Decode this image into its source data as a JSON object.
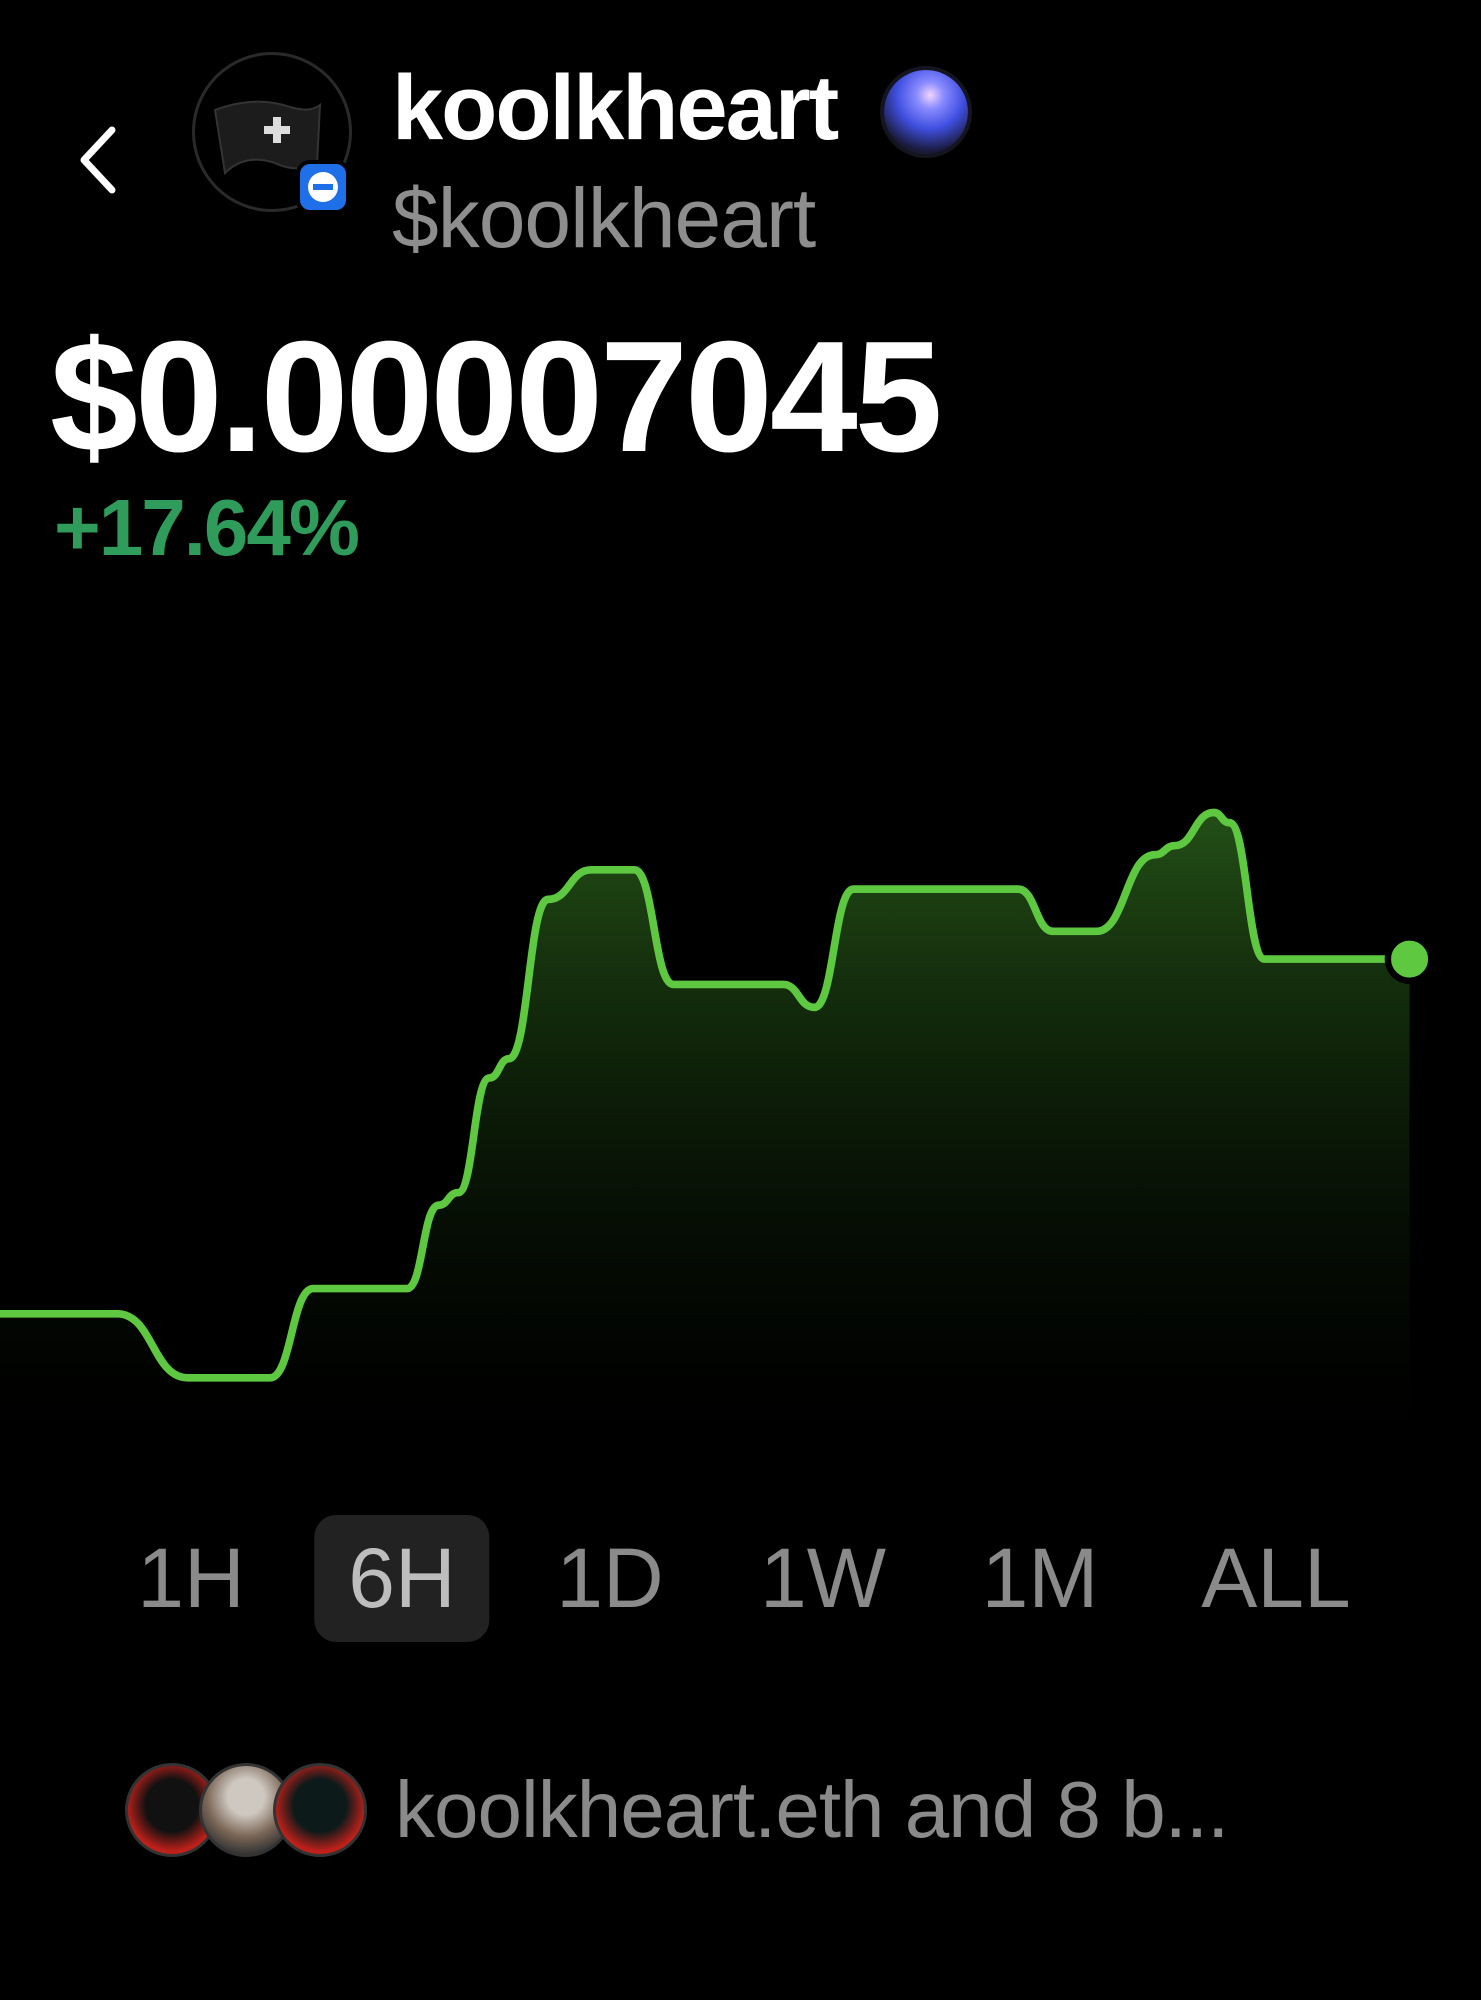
{
  "header": {
    "back_icon": "chevron-left-icon",
    "name": "koolkheart",
    "ticker": "$koolkheart",
    "verified_icon": "orb-icon",
    "avatar_badge_icon": "minus-circle-icon"
  },
  "price": {
    "value": "$0.00007045",
    "change": "+17.64%",
    "change_color": "#2f9c5c"
  },
  "time_ranges": {
    "selected": "6H",
    "options": [
      "1H",
      "6H",
      "1D",
      "1W",
      "1M",
      "ALL"
    ]
  },
  "holders": {
    "text": "koolkheart.eth and 8 b..."
  },
  "colors": {
    "line": "#5ec940",
    "background": "#000000"
  },
  "chart_data": {
    "type": "area",
    "title": "",
    "xlabel": "",
    "ylabel": "",
    "axes_visible": false,
    "grid": false,
    "points": [
      [
        0,
        16.9
      ],
      [
        30,
        16.9
      ],
      [
        48,
        6.3
      ],
      [
        69,
        6.3
      ],
      [
        80,
        21.1
      ],
      [
        104,
        21.1
      ],
      [
        112,
        34.9
      ],
      [
        117,
        37
      ],
      [
        125,
        56
      ],
      [
        130,
        59.2
      ],
      [
        140,
        85.6
      ],
      [
        151,
        90.5
      ],
      [
        162,
        90.5
      ],
      [
        172,
        71.5
      ],
      [
        200,
        71.5
      ],
      [
        208,
        67.7
      ],
      [
        218,
        87.3
      ],
      [
        260,
        87.3
      ],
      [
        269,
        80.3
      ],
      [
        280,
        80.3
      ],
      [
        295,
        93
      ],
      [
        300,
        94.5
      ],
      [
        310,
        100
      ],
      [
        314,
        98.3
      ],
      [
        323,
        75.7
      ],
      [
        360,
        75.7
      ]
    ],
    "end_marker": true
  }
}
